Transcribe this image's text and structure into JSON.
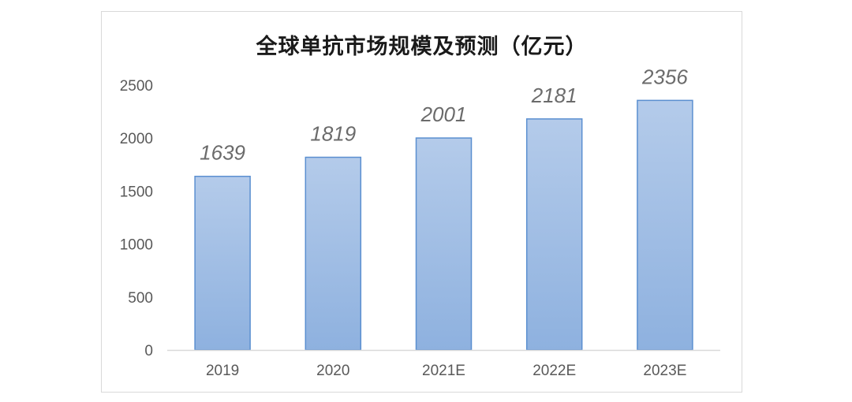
{
  "chart_data": {
    "type": "bar",
    "title": "全球单抗市场规模及预测（亿元）",
    "categories": [
      "2019",
      "2020",
      "2021E",
      "2022E",
      "2023E"
    ],
    "values": [
      1639,
      1819,
      2001,
      2181,
      2356
    ],
    "data_labels": [
      "1639",
      "1819",
      "2001",
      "2181",
      "2356"
    ],
    "y_ticks": [
      "0",
      "500",
      "1000",
      "1500",
      "2000",
      "2500"
    ],
    "ylim": [
      0,
      2500
    ],
    "grid": false,
    "legend": "none",
    "colors": {
      "bar_top": "#b4cbea",
      "bar_bottom": "#8eb1df",
      "bar_border": "#5b8fd0",
      "axis": "#d9d9d9"
    }
  }
}
